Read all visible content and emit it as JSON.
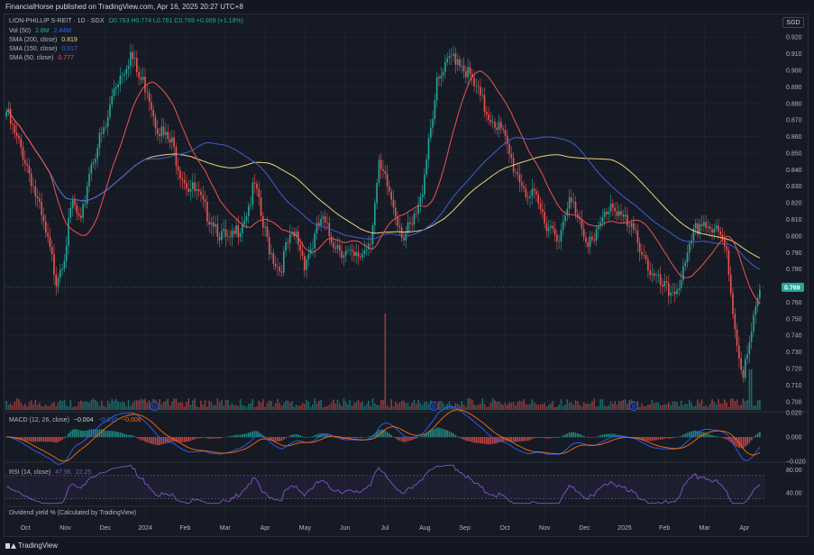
{
  "header": {
    "publisher": "FinancialHorse published on TradingView.com, Apr 16, 2025 20:27 UTC+8"
  },
  "currency_button": "SGD",
  "legend": {
    "symbol": "LION-PHILLIP S-REIT · 1D · SGX",
    "ohlc": "O0.763  H0.774  L0.761  C0.769  +0.009 (+1.18%)",
    "vol_label": "Vol (50)",
    "vol_v1": "2.8M",
    "vol_v2": "2.44M",
    "sma200_label": "SMA (200, close)",
    "sma200_value": "0.819",
    "sma150_label": "SMA (150, close)",
    "sma150_value": "0.817",
    "sma50_label": "SMA (50, close)",
    "sma50_value": "0.777",
    "macd_label": "MACD (12, 26, close)",
    "macd_v1": "−0.004",
    "macd_v2": "−0.010",
    "macd_v3": "−0.006",
    "rsi_label": "RSI (14, close)",
    "rsi_v1": "47.96",
    "rsi_v2": "22.25",
    "dividend_label": "Dividend yield % (Calculated by TradingView)"
  },
  "footer": {
    "brand": "TradingView"
  },
  "colors": {
    "up": "#26a69a",
    "down": "#ef5350",
    "sma200": "#e8d47a",
    "sma150": "#3d5fd1",
    "sma50": "#ef5350",
    "rsi": "#7e57c2",
    "macd": "#2962ff",
    "signal": "#ff6d00",
    "last_price_badge": "#26a69a"
  },
  "chart_data": {
    "type": "candlestick",
    "x_ticks": [
      "Oct",
      "Nov",
      "Dec",
      "2024",
      "Feb",
      "Mar",
      "Apr",
      "May",
      "Jun",
      "Jul",
      "Aug",
      "Sep",
      "Oct",
      "Nov",
      "Dec",
      "2025",
      "Feb",
      "Mar",
      "Apr"
    ],
    "price_axis_ticks": [
      "0.920",
      "0.910",
      "0.900",
      "0.890",
      "0.880",
      "0.870",
      "0.860",
      "0.850",
      "0.840",
      "0.830",
      "0.820",
      "0.810",
      "0.800",
      "0.790",
      "0.780",
      "0.760",
      "0.750",
      "0.740",
      "0.730",
      "0.720",
      "0.710",
      "0.700"
    ],
    "price_range": [
      0.695,
      0.925
    ],
    "last_price": "0.769",
    "close_path": [
      0.875,
      0.86,
      0.85,
      0.835,
      0.815,
      0.795,
      0.775,
      0.79,
      0.82,
      0.805,
      0.84,
      0.855,
      0.865,
      0.89,
      0.9,
      0.91,
      0.895,
      0.89,
      0.87,
      0.86,
      0.855,
      0.84,
      0.83,
      0.825,
      0.815,
      0.81,
      0.8,
      0.795,
      0.805,
      0.815,
      0.83,
      0.805,
      0.79,
      0.78,
      0.795,
      0.8,
      0.785,
      0.795,
      0.81,
      0.8,
      0.795,
      0.79,
      0.785,
      0.79,
      0.8,
      0.84,
      0.83,
      0.815,
      0.8,
      0.805,
      0.82,
      0.86,
      0.89,
      0.9,
      0.91,
      0.905,
      0.895,
      0.885,
      0.875,
      0.87,
      0.86,
      0.845,
      0.835,
      0.825,
      0.82,
      0.81,
      0.805,
      0.8,
      0.82,
      0.815,
      0.8,
      0.795,
      0.81,
      0.82,
      0.815,
      0.805,
      0.8,
      0.79,
      0.775,
      0.77,
      0.765,
      0.77,
      0.78,
      0.8,
      0.81,
      0.805,
      0.8,
      0.79,
      0.745,
      0.715,
      0.74,
      0.769
    ],
    "volume_spikes": [
      {
        "at": "Jul",
        "relative": 1.0
      }
    ],
    "dividend_markers": [
      "2024",
      "Aug",
      "2025"
    ],
    "macd_axis_ticks": [
      "0.020",
      "0.000",
      "−0.020"
    ],
    "rsi_axis_ticks": [
      "80.00",
      "40.00"
    ]
  }
}
